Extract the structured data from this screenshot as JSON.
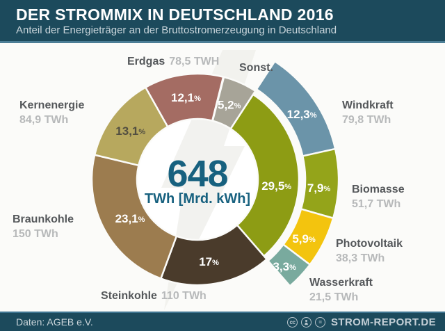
{
  "header": {
    "title": "DER STROMMIX IN DEUTSCHLAND 2016",
    "subtitle": "Anteil der Energieträger an der Bruttostromerzeugung in Deutschland"
  },
  "chart_data": {
    "type": "donut",
    "title": "DER STROMMIX IN DEUTSCHLAND 2016",
    "subtitle": "Anteil der Energieträger an der Bruttostromerzeugung in Deutschland",
    "center_total": {
      "value": "648",
      "unit_label": "TWh [Mrd. kWh]"
    },
    "legend_position": "around",
    "segments": [
      {
        "id": "sonstige",
        "label": "Sonst.",
        "pct": 5.2,
        "pct_label": "5,2",
        "twh_label": "",
        "color": "#a7a498",
        "renewable": false
      },
      {
        "id": "windkraft",
        "label": "Windkraft",
        "pct": 12.3,
        "pct_label": "12,3",
        "twh_label": "79,8 TWh",
        "color": "#6b94a9",
        "renewable": true
      },
      {
        "id": "biomasse",
        "label": "Biomasse",
        "pct": 7.9,
        "pct_label": "7,9",
        "twh_label": "51,7 TWh",
        "color": "#94a41a",
        "renewable": true
      },
      {
        "id": "photovoltaik",
        "label": "Photovoltaik",
        "pct": 5.9,
        "pct_label": "5,9",
        "twh_label": "38,3 TWh",
        "color": "#f3c40e",
        "renewable": true
      },
      {
        "id": "wasserkraft",
        "label": "Wasserkraft",
        "pct": 3.3,
        "pct_label": "3,3",
        "twh_label": "21,5 TWh",
        "color": "#79aa9e",
        "renewable": true
      },
      {
        "id": "steinkohle",
        "label": "Steinkohle",
        "pct": 17.0,
        "pct_label": "17",
        "twh_label": "110 TWh",
        "color": "#4a3b2b",
        "renewable": false
      },
      {
        "id": "braunkohle",
        "label": "Braunkohle",
        "pct": 23.1,
        "pct_label": "23,1",
        "twh_label": "150 TWh",
        "color": "#9c7c4f",
        "renewable": false
      },
      {
        "id": "kernenergie",
        "label": "Kernenergie",
        "pct": 13.1,
        "pct_label": "13,1",
        "twh_label": "84,9 TWh",
        "color": "#b7a85e",
        "renewable": false,
        "pct_color": "#514e41"
      },
      {
        "id": "erdgas",
        "label": "Erdgas",
        "pct": 12.1,
        "pct_label": "12,1",
        "twh_label": "78,5 TWH",
        "color": "#a46c63",
        "renewable": false
      }
    ],
    "renewables_group": {
      "pct": 29.5,
      "pct_label": "29,5",
      "color": "#8d9c14"
    },
    "pct_text_default_color": "#ffffff"
  },
  "footer": {
    "source": "Daten: AGEB e.V.",
    "license_icons": [
      "cc",
      "by",
      "nd"
    ],
    "brand": "STROM-REPORT.DE"
  }
}
